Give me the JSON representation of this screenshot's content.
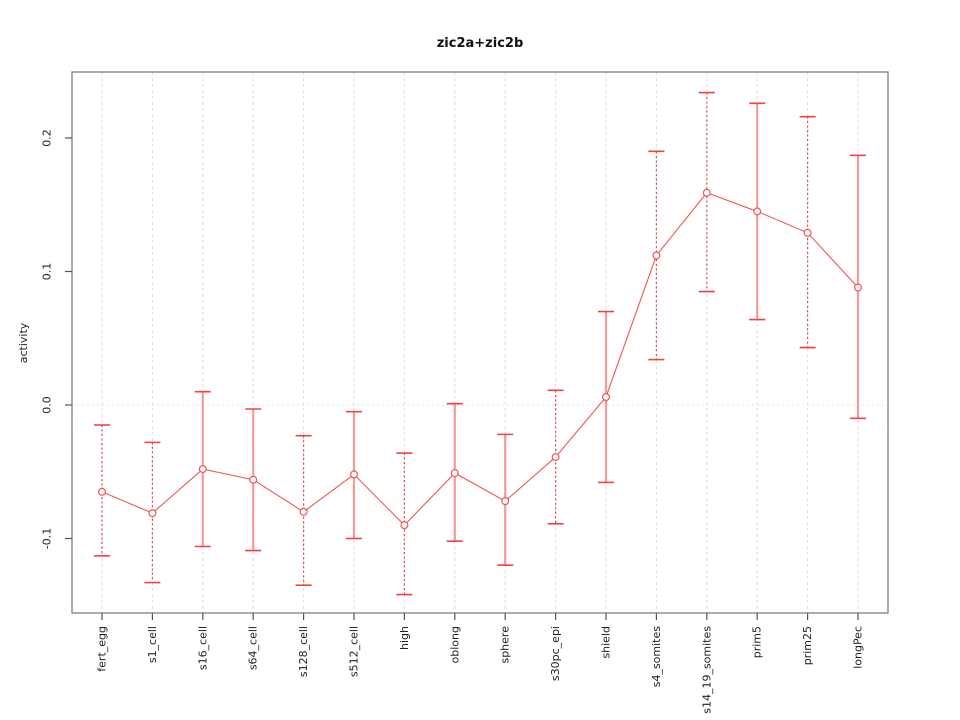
{
  "title": "zic2a+zic2b",
  "y_axis_label": "activity",
  "chart_data": {
    "type": "line",
    "title": "zic2a+zic2b",
    "xlabel": "",
    "ylabel": "activity",
    "ylim": [
      -0.156,
      0.249
    ],
    "y_ticks": [
      "-0.1",
      "0.0",
      "0.1",
      "0.2"
    ],
    "y_tick_values": [
      -0.1,
      0.0,
      0.1,
      0.2
    ],
    "grid": "vertical dashed gridlines at each category; dotted horizontal line at y=0; no legend",
    "x_tick_rotation": 90,
    "marker": "open-circle",
    "colors": {
      "series": "#f25555",
      "errorbar_solid": "#f59a9a",
      "errorbar_dashed": "#e04848",
      "errorbar_cap": "#ef4343",
      "gridline": "#dcdcdc",
      "zero_line": "#e3e3e3",
      "panel_border": "#808080",
      "tick": "#555555",
      "text": "#222222"
    },
    "categories": [
      "fert_egg",
      "s1_cell",
      "s16_cell",
      "s64_cell",
      "s128_cell",
      "s512_cell",
      "high",
      "oblong",
      "sphere",
      "s30pc_epi",
      "shield",
      "s4_somites",
      "s14_19_somites",
      "prim5",
      "prim25",
      "longPec"
    ],
    "points": [
      {
        "label": "fert_egg",
        "value": -0.065,
        "lower": -0.113,
        "upper": -0.015,
        "bar_style": "dashed"
      },
      {
        "label": "s1_cell",
        "value": -0.081,
        "lower": -0.133,
        "upper": -0.028,
        "bar_style": "dashed"
      },
      {
        "label": "s16_cell",
        "value": -0.048,
        "lower": -0.106,
        "upper": 0.01,
        "bar_style": "solid"
      },
      {
        "label": "s64_cell",
        "value": -0.056,
        "lower": -0.109,
        "upper": -0.003,
        "bar_style": "solid"
      },
      {
        "label": "s128_cell",
        "value": -0.08,
        "lower": -0.135,
        "upper": -0.023,
        "bar_style": "dashed"
      },
      {
        "label": "s512_cell",
        "value": -0.052,
        "lower": -0.1,
        "upper": -0.005,
        "bar_style": "solid"
      },
      {
        "label": "high",
        "value": -0.09,
        "lower": -0.142,
        "upper": -0.036,
        "bar_style": "dashed"
      },
      {
        "label": "oblong",
        "value": -0.051,
        "lower": -0.102,
        "upper": 0.001,
        "bar_style": "solid"
      },
      {
        "label": "sphere",
        "value": -0.072,
        "lower": -0.12,
        "upper": -0.022,
        "bar_style": "solid"
      },
      {
        "label": "s30pc_epi",
        "value": -0.039,
        "lower": -0.089,
        "upper": 0.011,
        "bar_style": "dashed"
      },
      {
        "label": "shield",
        "value": 0.006,
        "lower": -0.058,
        "upper": 0.07,
        "bar_style": "solid"
      },
      {
        "label": "s4_somites",
        "value": 0.112,
        "lower": 0.034,
        "upper": 0.19,
        "bar_style": "dashed"
      },
      {
        "label": "s14_19_somites",
        "value": 0.159,
        "lower": 0.085,
        "upper": 0.234,
        "bar_style": "dashed"
      },
      {
        "label": "prim5",
        "value": 0.145,
        "lower": 0.064,
        "upper": 0.226,
        "bar_style": "solid"
      },
      {
        "label": "prim25",
        "value": 0.129,
        "lower": 0.043,
        "upper": 0.216,
        "bar_style": "dashed"
      },
      {
        "label": "longPec",
        "value": 0.088,
        "lower": -0.01,
        "upper": 0.187,
        "bar_style": "solid"
      }
    ]
  }
}
